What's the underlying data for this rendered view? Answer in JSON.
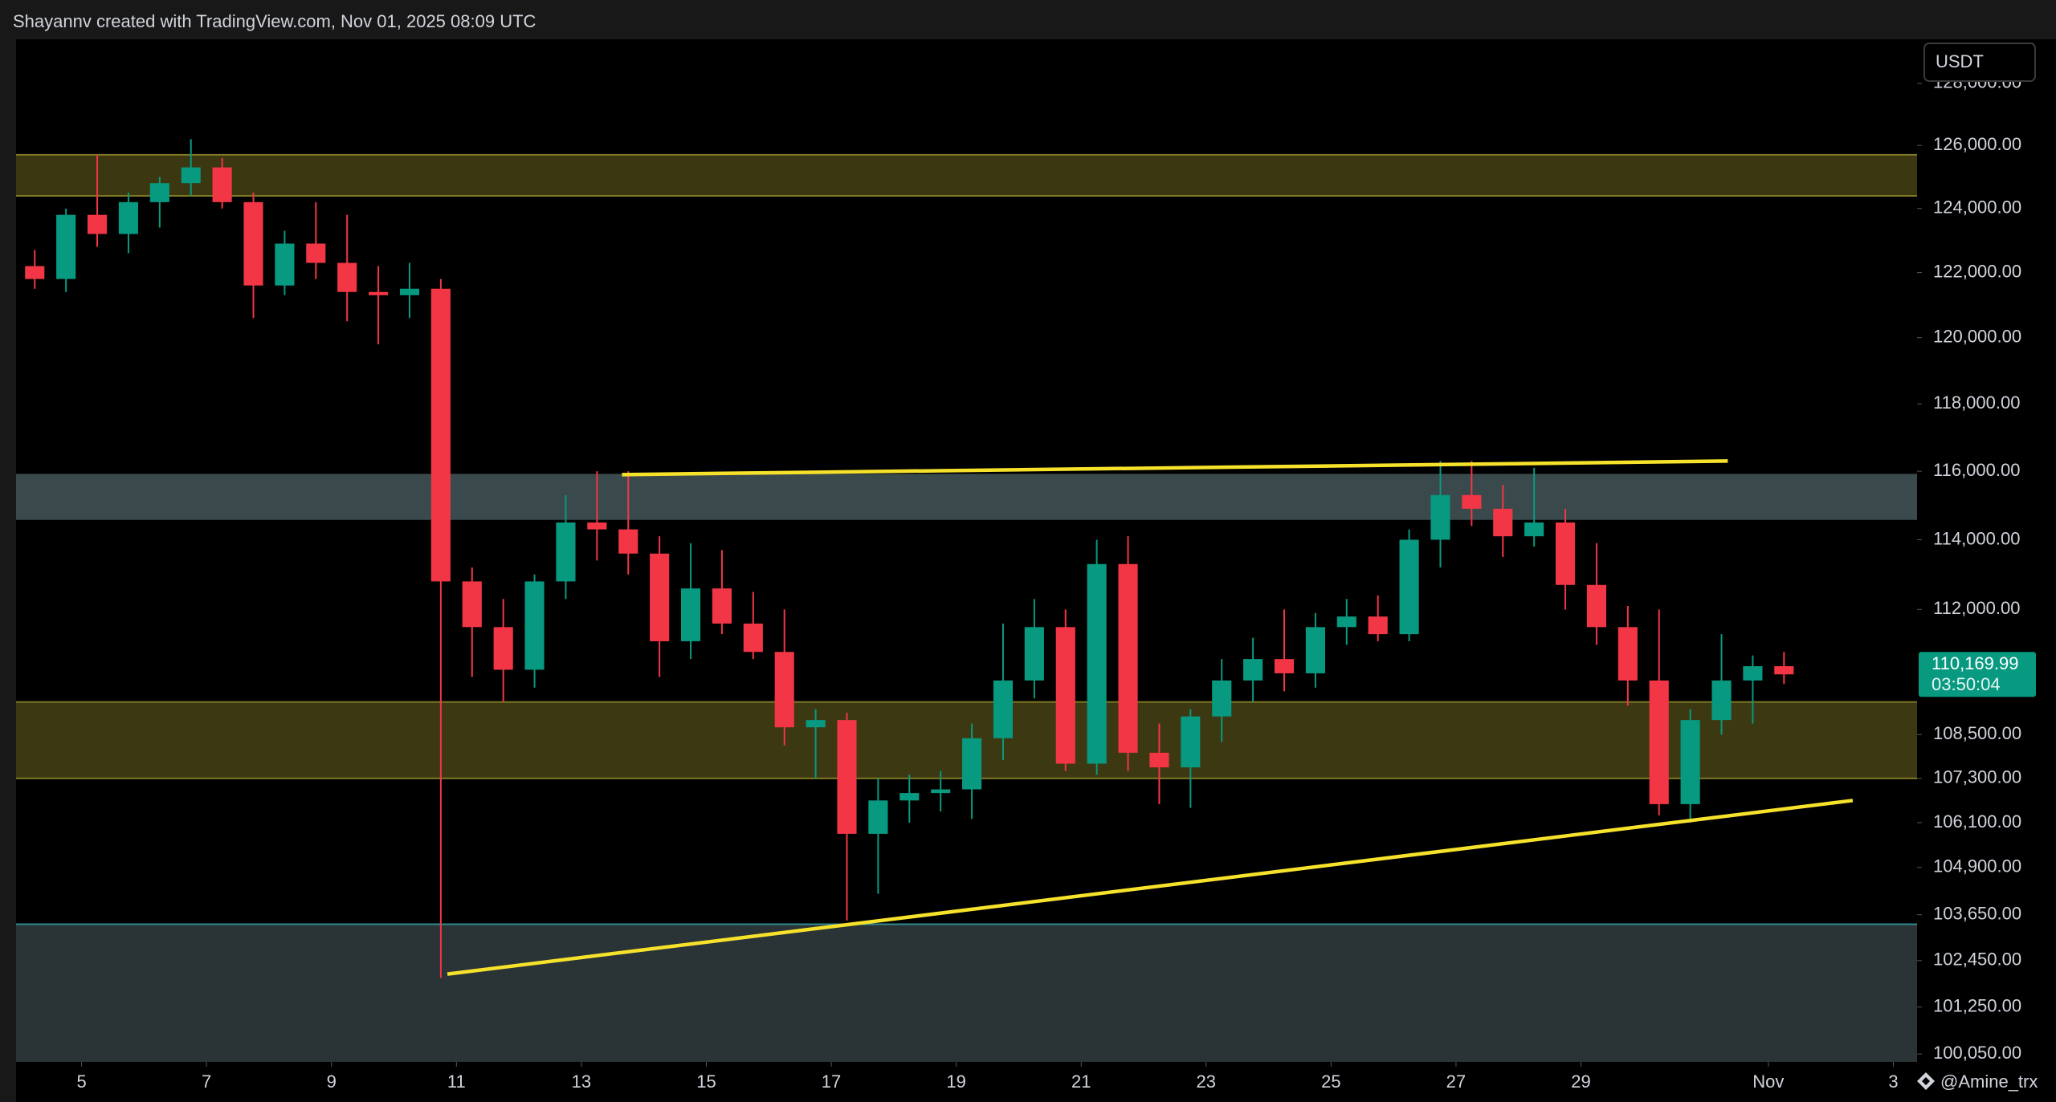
{
  "header": {
    "title": "Shayannv created with TradingView.com, Nov 01, 2025 08:09 UTC",
    "watermark": "@Amine_trx"
  },
  "chart_data": {
    "type": "candlestick",
    "currency": "USDT",
    "log": true,
    "grid": false,
    "ylim": [
      99850,
      129440
    ],
    "yticks": [
      {
        "value": 128000,
        "label": "128,000.00"
      },
      {
        "value": 126000,
        "label": "126,000.00"
      },
      {
        "value": 124000,
        "label": "124,000.00"
      },
      {
        "value": 122000,
        "label": "122,000.00"
      },
      {
        "value": 120000,
        "label": "120,000.00"
      },
      {
        "value": 118000,
        "label": "118,000.00"
      },
      {
        "value": 116000,
        "label": "116,000.00"
      },
      {
        "value": 114000,
        "label": "114,000.00"
      },
      {
        "value": 112000,
        "label": "112,000.00"
      },
      {
        "value": 108500,
        "label": "108,500.00"
      },
      {
        "value": 107300,
        "label": "107,300.00"
      },
      {
        "value": 106100,
        "label": "106,100.00"
      },
      {
        "value": 104900,
        "label": "104,900.00"
      },
      {
        "value": 103650,
        "label": "103,650.00"
      },
      {
        "value": 102450,
        "label": "102,450.00"
      },
      {
        "value": 101250,
        "label": "101,250.00"
      },
      {
        "value": 100050,
        "label": "100,050.00"
      }
    ],
    "xlim": [
      3.951,
      34.38
    ],
    "xticks": [
      5,
      7,
      9,
      11,
      13,
      15,
      17,
      19,
      21,
      23,
      25,
      27,
      29,
      {
        "value": 32,
        "label": "Nov"
      },
      {
        "value": 34,
        "label": "3"
      }
    ],
    "up_color": "#089981",
    "down_color": "#f23645",
    "x": [
      4.25,
      4.75,
      5.25,
      5.75,
      6.25,
      6.75,
      7.25,
      7.75,
      8.25,
      8.75,
      9.25,
      9.75,
      10.25,
      10.75,
      11.25,
      11.75,
      12.25,
      12.75,
      13.25,
      13.75,
      14.25,
      14.75,
      15.25,
      15.75,
      16.25,
      16.75,
      17.25,
      17.75,
      18.25,
      18.75,
      19.25,
      19.75,
      20.25,
      20.75,
      21.25,
      21.75,
      22.25,
      22.75,
      23.25,
      23.75,
      24.25,
      24.75,
      25.25,
      25.75,
      26.25,
      26.75,
      27.25,
      27.75,
      28.25,
      28.75,
      29.25,
      29.75,
      30.25,
      30.75,
      31.25,
      31.75,
      32.25
    ],
    "open": [
      122200,
      121800,
      123800,
      123200,
      124200,
      124800,
      125300,
      124200,
      121600,
      122900,
      122300,
      121400,
      121300,
      121500,
      112800,
      111500,
      110300,
      112800,
      114500,
      114300,
      113600,
      111100,
      112600,
      111600,
      110800,
      108700,
      108900,
      105800,
      106700,
      106900,
      107000,
      108400,
      110000,
      111500,
      107700,
      113300,
      108000,
      107600,
      109000,
      110000,
      110600,
      110200,
      111500,
      111800,
      111300,
      114000,
      115300,
      114900,
      114100,
      114500,
      112700,
      111500,
      110000,
      106600,
      108900,
      110000,
      110400
    ],
    "high": [
      122700,
      124000,
      125700,
      124500,
      125000,
      126200,
      125600,
      124500,
      123300,
      124200,
      123800,
      122200,
      122300,
      121800,
      113200,
      112300,
      113000,
      115300,
      116000,
      116000,
      114100,
      113900,
      113700,
      112500,
      112000,
      109200,
      109100,
      107300,
      107400,
      107500,
      108800,
      111600,
      112300,
      112000,
      114000,
      114100,
      108800,
      109200,
      110600,
      111200,
      112000,
      111900,
      112300,
      112400,
      114300,
      116300,
      116300,
      115600,
      116100,
      114900,
      113900,
      112100,
      112000,
      109200,
      111300,
      110700,
      110800
    ],
    "low": [
      121500,
      121400,
      122800,
      122600,
      123400,
      124400,
      124000,
      120600,
      121300,
      121800,
      120500,
      119800,
      120600,
      102000,
      110100,
      109400,
      109800,
      112300,
      113400,
      113000,
      110100,
      110600,
      111300,
      110600,
      108200,
      107300,
      103500,
      104200,
      106100,
      106400,
      106200,
      107800,
      109500,
      107500,
      107400,
      107500,
      106600,
      106500,
      108300,
      109400,
      109700,
      109800,
      111000,
      111100,
      111100,
      113200,
      114400,
      113500,
      113800,
      112000,
      111000,
      109300,
      106300,
      106100,
      108500,
      108800,
      109900
    ],
    "close": [
      121800,
      123800,
      123200,
      124200,
      124800,
      125300,
      124200,
      121600,
      122900,
      122300,
      121400,
      121300,
      121500,
      112800,
      111500,
      110300,
      112800,
      114500,
      114300,
      113600,
      111100,
      112600,
      111600,
      110800,
      108700,
      108900,
      105800,
      106700,
      106900,
      107000,
      108400,
      110000,
      111500,
      107700,
      113300,
      108000,
      107600,
      109000,
      110000,
      110600,
      110200,
      111500,
      111800,
      111300,
      114000,
      115300,
      114900,
      114100,
      114500,
      112700,
      111500,
      110000,
      106600,
      108900,
      110000,
      110400,
      110169.99
    ],
    "last_price": {
      "value": 110169.99,
      "label": "110,169.99"
    },
    "countdown": "03:50:04",
    "zones": [
      {
        "ylim": [
          124400,
          125700
        ],
        "color": "#3b3711",
        "border": "#807a26"
      },
      {
        "ylim": [
          114600,
          115900
        ],
        "color": "#3a4a4c",
        "border": "#3a4a4c"
      },
      {
        "ylim": [
          107300,
          109400
        ],
        "color": "#3c3812",
        "border": "#807a26"
      },
      {
        "ylim": [
          99850,
          103400
        ],
        "color": "#2a3437",
        "border": "#2e8a90"
      }
    ],
    "trendlines": [
      {
        "x": [
          13.65,
          31.35
        ],
        "y": [
          115900,
          116300
        ],
        "color": "#f7e22b"
      },
      {
        "x": [
          10.855,
          33.35
        ],
        "y": [
          102100,
          106700
        ],
        "color": "#f7e22b"
      }
    ]
  }
}
